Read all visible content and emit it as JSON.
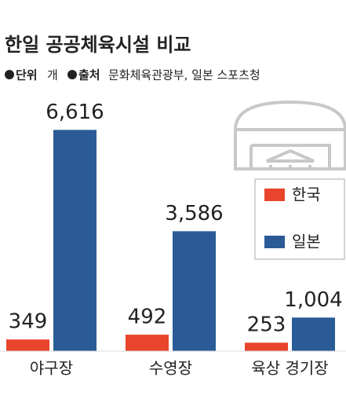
{
  "chart_data": {
    "type": "bar",
    "title": "한일 공공체육시설 비교",
    "unit_label": "단위",
    "unit": "개",
    "source_label": "출처",
    "source": "문화체육관광부, 일본 스포츠청",
    "categories": [
      "야구장",
      "수영장",
      "육상 경기장"
    ],
    "series": [
      {
        "name": "한국",
        "color": "#e8452c",
        "values": [
          349,
          492,
          253
        ],
        "value_labels": [
          "349",
          "492",
          "253"
        ]
      },
      {
        "name": "일본",
        "color": "#2a5b96",
        "values": [
          6616,
          3586,
          1004
        ],
        "value_labels": [
          "6,616",
          "3,586",
          "1,004"
        ]
      }
    ],
    "ylim": [
      0,
      7000
    ]
  }
}
